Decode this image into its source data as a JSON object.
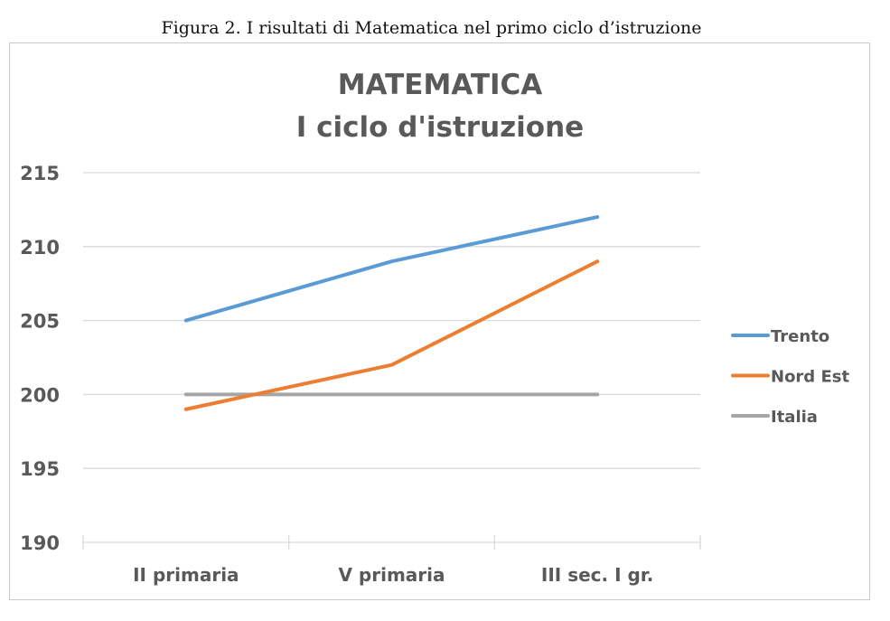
{
  "caption": "Figura 2. I risultati di Matematica nel primo ciclo d’istruzione",
  "chart_data": {
    "type": "line",
    "title": [
      "MATEMATICA",
      "I ciclo d'istruzione"
    ],
    "categories": [
      "II primaria",
      "V primaria",
      "III sec. I gr."
    ],
    "series": [
      {
        "name": "Trento",
        "values": [
          205,
          209,
          212
        ],
        "color": "#5B9BD5"
      },
      {
        "name": "Nord Est",
        "values": [
          199,
          202,
          209
        ],
        "color": "#ED7D31"
      },
      {
        "name": "Italia",
        "values": [
          200,
          200,
          200
        ],
        "color": "#A5A5A5"
      }
    ],
    "ylim": [
      190,
      215
    ],
    "yticks": [
      "190",
      "195",
      "200",
      "205",
      "210",
      "215"
    ],
    "grid": true,
    "legend": "right",
    "xlabel": "",
    "ylabel": ""
  }
}
